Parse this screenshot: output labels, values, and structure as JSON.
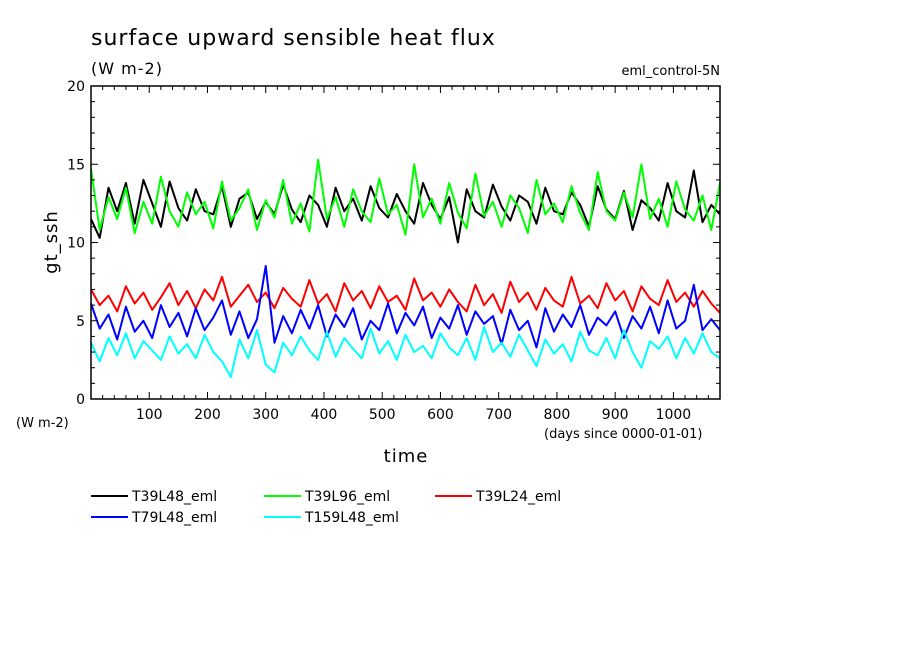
{
  "chart_data": {
    "type": "line",
    "title": "surface upward sensible heat flux",
    "units": "(W m-2)",
    "run_label": "eml_control-5N",
    "ylabel": "gt_ssh",
    "y_units_label": "(W m-2)",
    "xlabel": "time",
    "x_units_label": "(days since 0000-01-01)",
    "xlim": [
      0,
      1080
    ],
    "ylim": [
      0,
      20
    ],
    "x_ticks": [
      100,
      200,
      300,
      400,
      500,
      600,
      700,
      800,
      900,
      1000
    ],
    "y_ticks": [
      0,
      5,
      10,
      15,
      20
    ],
    "grid": false,
    "legend_position": "bottom-left",
    "series": [
      {
        "name": "T39L48_eml",
        "color": "#000000",
        "x": [
          0,
          15,
          30,
          45,
          60,
          75,
          90,
          105,
          120,
          135,
          150,
          165,
          180,
          195,
          210,
          225,
          240,
          255,
          270,
          285,
          300,
          315,
          330,
          345,
          360,
          375,
          390,
          405,
          420,
          435,
          450,
          465,
          480,
          495,
          510,
          525,
          540,
          555,
          570,
          585,
          600,
          615,
          630,
          645,
          660,
          675,
          690,
          705,
          720,
          735,
          750,
          765,
          780,
          795,
          810,
          825,
          840,
          855,
          870,
          885,
          900,
          915,
          930,
          945,
          960,
          975,
          990,
          1005,
          1020,
          1035,
          1050,
          1065,
          1080
        ],
        "y": [
          11.5,
          10.3,
          13.5,
          12.0,
          13.8,
          11.2,
          14.0,
          12.5,
          11.0,
          13.9,
          12.2,
          11.4,
          13.4,
          12.0,
          11.8,
          13.6,
          11.0,
          12.8,
          13.2,
          11.5,
          12.6,
          11.8,
          13.7,
          12.1,
          11.3,
          13.0,
          12.4,
          11.0,
          13.5,
          12.0,
          12.8,
          11.4,
          13.6,
          12.2,
          11.6,
          13.1,
          12.0,
          11.2,
          13.8,
          12.4,
          11.5,
          12.9,
          10.0,
          13.4,
          12.0,
          11.6,
          13.7,
          12.3,
          11.4,
          13.0,
          12.6,
          11.2,
          13.5,
          12.0,
          11.8,
          13.2,
          12.4,
          11.0,
          13.6,
          12.1,
          11.5,
          13.3,
          10.8,
          12.7,
          12.2,
          11.4,
          13.8,
          12.0,
          11.6,
          14.6,
          11.3,
          12.4,
          11.8
        ]
      },
      {
        "name": "T39L96_eml",
        "color": "#00ff00",
        "x": [
          0,
          15,
          30,
          45,
          60,
          75,
          90,
          105,
          120,
          135,
          150,
          165,
          180,
          195,
          210,
          225,
          240,
          255,
          270,
          285,
          300,
          315,
          330,
          345,
          360,
          375,
          390,
          405,
          420,
          435,
          450,
          465,
          480,
          495,
          510,
          525,
          540,
          555,
          570,
          585,
          600,
          615,
          630,
          645,
          660,
          675,
          690,
          705,
          720,
          735,
          750,
          765,
          780,
          795,
          810,
          825,
          840,
          855,
          870,
          885,
          900,
          915,
          930,
          945,
          960,
          975,
          990,
          1005,
          1020,
          1035,
          1050,
          1065,
          1080
        ],
        "y": [
          14.7,
          10.8,
          12.9,
          11.5,
          13.5,
          10.6,
          12.6,
          11.2,
          14.2,
          12.0,
          11.0,
          13.2,
          11.8,
          12.6,
          10.9,
          13.9,
          11.4,
          12.2,
          13.4,
          10.8,
          12.7,
          11.6,
          14.0,
          11.2,
          12.5,
          10.7,
          15.3,
          11.5,
          12.9,
          11.0,
          13.4,
          12.0,
          11.3,
          14.1,
          11.8,
          12.4,
          10.5,
          15.0,
          11.6,
          12.8,
          11.2,
          13.8,
          11.9,
          10.9,
          14.4,
          11.7,
          12.6,
          11.0,
          13.0,
          12.2,
          10.6,
          14.0,
          11.8,
          12.5,
          11.3,
          13.6,
          11.9,
          10.8,
          14.5,
          12.0,
          11.4,
          13.2,
          11.6,
          15.0,
          11.5,
          12.8,
          11.0,
          13.9,
          12.1,
          11.4,
          13.0,
          10.8,
          13.8
        ]
      },
      {
        "name": "T39L24_eml",
        "color": "#ff0000",
        "x": [
          0,
          15,
          30,
          45,
          60,
          75,
          90,
          105,
          120,
          135,
          150,
          165,
          180,
          195,
          210,
          225,
          240,
          255,
          270,
          285,
          300,
          315,
          330,
          345,
          360,
          375,
          390,
          405,
          420,
          435,
          450,
          465,
          480,
          495,
          510,
          525,
          540,
          555,
          570,
          585,
          600,
          615,
          630,
          645,
          660,
          675,
          690,
          705,
          720,
          735,
          750,
          765,
          780,
          795,
          810,
          825,
          840,
          855,
          870,
          885,
          900,
          915,
          930,
          945,
          960,
          975,
          990,
          1005,
          1020,
          1035,
          1050,
          1065,
          1080
        ],
        "y": [
          7.0,
          6.0,
          6.6,
          5.6,
          7.2,
          6.1,
          6.8,
          5.7,
          6.5,
          7.4,
          6.0,
          6.9,
          5.8,
          7.0,
          6.3,
          7.8,
          5.9,
          6.6,
          7.3,
          6.2,
          6.8,
          5.8,
          7.1,
          6.4,
          5.9,
          7.6,
          6.1,
          6.7,
          5.6,
          7.4,
          6.3,
          6.9,
          5.8,
          7.2,
          6.2,
          6.6,
          5.7,
          7.7,
          6.3,
          6.8,
          5.9,
          7.0,
          6.2,
          5.6,
          7.3,
          6.0,
          6.7,
          5.5,
          7.5,
          6.2,
          6.8,
          5.7,
          7.1,
          6.3,
          5.9,
          7.8,
          6.1,
          6.6,
          5.8,
          7.4,
          6.3,
          6.9,
          5.6,
          7.2,
          6.4,
          6.0,
          7.6,
          6.2,
          6.8,
          5.9,
          6.9,
          6.1,
          5.5
        ]
      },
      {
        "name": "T79L48_eml",
        "color": "#0000ff",
        "x": [
          0,
          15,
          30,
          45,
          60,
          75,
          90,
          105,
          120,
          135,
          150,
          165,
          180,
          195,
          210,
          225,
          240,
          255,
          270,
          285,
          300,
          315,
          330,
          345,
          360,
          375,
          390,
          405,
          420,
          435,
          450,
          465,
          480,
          495,
          510,
          525,
          540,
          555,
          570,
          585,
          600,
          615,
          630,
          645,
          660,
          675,
          690,
          705,
          720,
          735,
          750,
          765,
          780,
          795,
          810,
          825,
          840,
          855,
          870,
          885,
          900,
          915,
          930,
          945,
          960,
          975,
          990,
          1005,
          1020,
          1035,
          1050,
          1065,
          1080
        ],
        "y": [
          6.1,
          4.5,
          5.4,
          3.8,
          5.9,
          4.3,
          5.0,
          3.9,
          6.0,
          4.6,
          5.5,
          4.0,
          5.8,
          4.4,
          5.2,
          6.3,
          4.1,
          5.6,
          3.9,
          5.1,
          8.5,
          3.6,
          5.3,
          4.2,
          5.7,
          4.5,
          6.0,
          4.0,
          5.4,
          4.6,
          5.8,
          3.8,
          5.0,
          4.4,
          6.1,
          4.2,
          5.5,
          4.7,
          5.9,
          3.9,
          5.2,
          4.5,
          6.0,
          4.1,
          5.6,
          4.8,
          5.3,
          3.5,
          5.7,
          4.4,
          5.0,
          3.3,
          5.8,
          4.3,
          5.4,
          4.6,
          6.0,
          4.1,
          5.2,
          4.7,
          5.6,
          3.9,
          5.3,
          4.5,
          5.9,
          4.2,
          6.3,
          4.5,
          5.0,
          7.3,
          4.4,
          5.1,
          4.4
        ]
      },
      {
        "name": "T159L48_eml",
        "color": "#00ffff",
        "x": [
          0,
          15,
          30,
          45,
          60,
          75,
          90,
          105,
          120,
          135,
          150,
          165,
          180,
          195,
          210,
          225,
          240,
          255,
          270,
          285,
          300,
          315,
          330,
          345,
          360,
          375,
          390,
          405,
          420,
          435,
          450,
          465,
          480,
          495,
          510,
          525,
          540,
          555,
          570,
          585,
          600,
          615,
          630,
          645,
          660,
          675,
          690,
          705,
          720,
          735,
          750,
          765,
          780,
          795,
          810,
          825,
          840,
          855,
          870,
          885,
          900,
          915,
          930,
          945,
          960,
          975,
          990,
          1005,
          1020,
          1035,
          1050,
          1065,
          1080
        ],
        "y": [
          3.6,
          2.4,
          3.9,
          2.8,
          4.2,
          2.6,
          3.7,
          3.1,
          2.5,
          4.0,
          2.9,
          3.5,
          2.6,
          4.1,
          3.0,
          2.4,
          1.4,
          3.8,
          2.6,
          4.4,
          2.2,
          1.7,
          3.6,
          2.8,
          4.0,
          3.1,
          2.5,
          4.3,
          2.7,
          3.9,
          3.2,
          2.6,
          4.5,
          2.9,
          3.7,
          2.5,
          4.1,
          3.0,
          3.4,
          2.6,
          4.2,
          3.3,
          2.8,
          3.9,
          2.5,
          4.6,
          3.0,
          3.6,
          2.7,
          4.1,
          3.1,
          2.1,
          3.8,
          2.9,
          3.5,
          2.4,
          4.3,
          3.1,
          2.8,
          3.9,
          2.6,
          4.4,
          3.0,
          2.0,
          3.7,
          3.2,
          4.0,
          2.6,
          3.9,
          2.9,
          4.2,
          3.0,
          2.6
        ]
      }
    ]
  }
}
